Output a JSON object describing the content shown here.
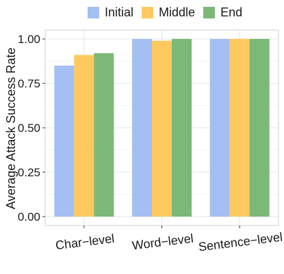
{
  "chart_data": {
    "type": "bar",
    "title": "",
    "xlabel": "",
    "ylabel": "Average Attack Success Rate",
    "categories": [
      "Char−level",
      "Word−level",
      "Sentence−level"
    ],
    "series": [
      {
        "name": "Initial",
        "color": "#a4bff2",
        "values": [
          0.85,
          1.0,
          1.0
        ]
      },
      {
        "name": "Middle",
        "color": "#ffc960",
        "values": [
          0.91,
          0.99,
          1.0
        ]
      },
      {
        "name": "End",
        "color": "#7cb878",
        "values": [
          0.92,
          1.0,
          1.0
        ]
      }
    ],
    "ylim": [
      0,
      1.0
    ],
    "yticks": [
      "0.00",
      "0.25",
      "0.50",
      "0.75",
      "1.00"
    ],
    "grid": true,
    "legend_position": "top"
  }
}
